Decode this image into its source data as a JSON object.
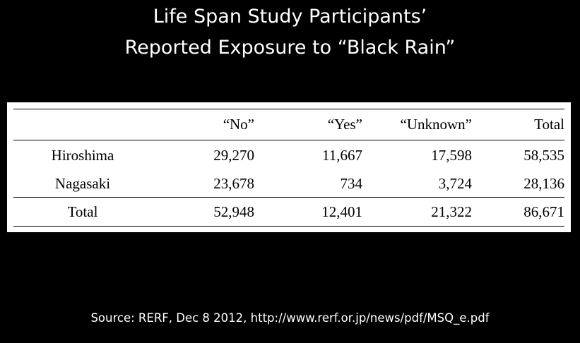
{
  "title": {
    "line1": "Life Span Study Participants’",
    "line2": "Reported Exposure to “Black Rain”"
  },
  "table": {
    "headers": [
      "",
      "“No”",
      "“Yes”",
      "“Unknown”",
      "Total"
    ],
    "rows": [
      {
        "label": "Hiroshima",
        "no": "29,270",
        "yes": "11,667",
        "unknown": "17,598",
        "total": "58,535"
      },
      {
        "label": "Nagasaki",
        "no": "23,678",
        "yes": "734",
        "unknown": "3,724",
        "total": "28,136"
      }
    ],
    "total_row": {
      "label": "Total",
      "no": "52,948",
      "yes": "12,401",
      "unknown": "21,322",
      "total": "86,671"
    }
  },
  "source": "Source: RERF, Dec 8 2012, http://www.rerf.or.jp/news/pdf/MSQ_e.pdf",
  "colors": {
    "background": "#000000",
    "title_text": "#ffffff",
    "table_background": "#ffffff",
    "table_text": "#000000"
  }
}
